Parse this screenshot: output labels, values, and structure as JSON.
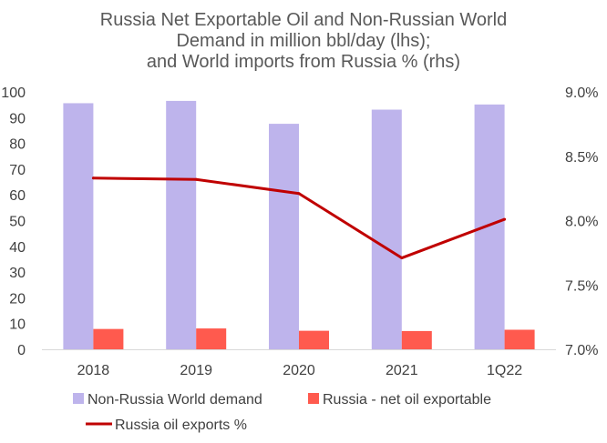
{
  "chart_data": {
    "type": "bar",
    "title": [
      "Russia Net Exportable Oil and Non-Russian World",
      "Demand in million bbl/day (lhs);",
      "and World imports from Russia % (rhs)"
    ],
    "categories": [
      "2018",
      "2019",
      "2020",
      "2021",
      "1Q22"
    ],
    "series": [
      {
        "name": "Non-Russia World demand",
        "kind": "bar",
        "axis": "left",
        "color": "#BEB4EC",
        "values": [
          95.6,
          96.5,
          87.6,
          93.1,
          95.1
        ]
      },
      {
        "name": "Russia - net oil exportable",
        "kind": "bar",
        "axis": "left",
        "color": "#FF5A4E",
        "values": [
          7.9,
          8.1,
          7.2,
          7.1,
          7.6
        ]
      },
      {
        "name": "Russia oil exports %",
        "kind": "line",
        "axis": "right",
        "color": "#C00000",
        "values": [
          8.33,
          8.32,
          8.21,
          7.71,
          8.01
        ]
      }
    ],
    "y_left": {
      "min": 0,
      "max": 100,
      "step": 10,
      "ticks": [
        "0",
        "10",
        "20",
        "30",
        "40",
        "50",
        "60",
        "70",
        "80",
        "90",
        "100"
      ]
    },
    "y_right": {
      "min": 7.0,
      "max": 9.0,
      "step": 0.5,
      "ticks": [
        "7.0%",
        "7.5%",
        "8.0%",
        "8.5%",
        "9.0%"
      ]
    },
    "grid": false,
    "legend_position": "bottom"
  }
}
